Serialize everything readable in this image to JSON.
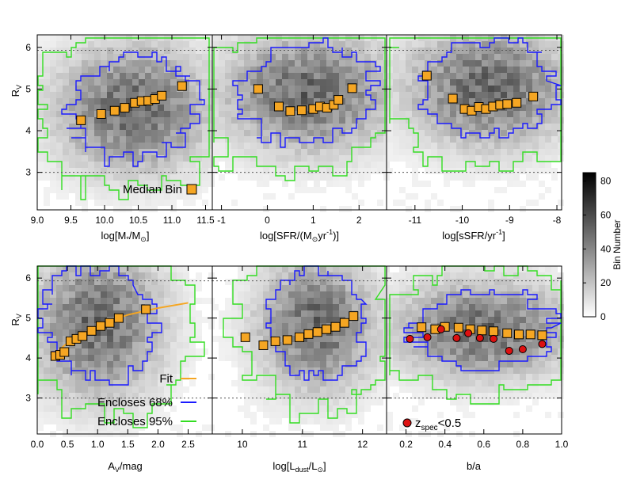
{
  "chart_data": [
    {
      "type": "scatter",
      "panel": "top-left",
      "xlabel": "log[M*/M⊙]",
      "ylabel": "RV",
      "xlim": [
        9.0,
        11.6
      ],
      "ylim": [
        2.1,
        6.3
      ],
      "xticks": [
        "9.0",
        "9.5",
        "10.0",
        "10.5",
        "11.0",
        "11.5"
      ],
      "yticks": [
        "3",
        "4",
        "5",
        "6"
      ],
      "series": [
        {
          "name": "Median Bin",
          "x": [
            9.65,
            9.95,
            10.15,
            10.3,
            10.45,
            10.55,
            10.65,
            10.75,
            10.85,
            11.15
          ],
          "y": [
            4.25,
            4.4,
            4.48,
            4.55,
            4.67,
            4.71,
            4.72,
            4.76,
            4.84,
            5.07
          ]
        }
      ]
    },
    {
      "type": "scatter",
      "panel": "top-middle",
      "xlabel": "log[SFR/(M⊙yr-1)]",
      "ylabel": "",
      "xlim": [
        -1.2,
        2.6
      ],
      "ylim": [
        2.1,
        6.3
      ],
      "xticks": [
        "-1",
        "0",
        "1",
        "2"
      ],
      "yticks": [],
      "series": [
        {
          "name": "Median Bin",
          "x": [
            -0.2,
            0.25,
            0.5,
            0.75,
            1.0,
            1.15,
            1.3,
            1.45,
            1.55,
            1.85
          ],
          "y": [
            5.0,
            4.58,
            4.47,
            4.49,
            4.52,
            4.58,
            4.55,
            4.62,
            4.74,
            5.02
          ]
        }
      ]
    },
    {
      "type": "scatter",
      "panel": "top-right",
      "xlabel": "log[sSFR/yr-1]",
      "ylabel": "",
      "xlim": [
        -11.6,
        -7.9
      ],
      "ylim": [
        2.1,
        6.3
      ],
      "xticks": [
        "-11",
        "-10",
        "-9",
        "-8"
      ],
      "yticks": [],
      "series": [
        {
          "name": "Median Bin",
          "x": [
            -10.75,
            -10.2,
            -9.95,
            -9.8,
            -9.65,
            -9.5,
            -9.35,
            -9.2,
            -9.05,
            -8.85,
            -8.5
          ],
          "y": [
            5.32,
            4.77,
            4.52,
            4.48,
            4.57,
            4.52,
            4.58,
            4.62,
            4.64,
            4.67,
            4.82
          ]
        }
      ]
    },
    {
      "type": "scatter",
      "panel": "bottom-left",
      "xlabel": "AV/mag",
      "ylabel": "RV",
      "xlim": [
        0.0,
        2.9
      ],
      "ylim": [
        2.1,
        6.3
      ],
      "xticks": [
        "0.0",
        "0.5",
        "1.0",
        "1.5",
        "2.0",
        "2.5"
      ],
      "yticks": [
        "3",
        "4",
        "5",
        "6"
      ],
      "series": [
        {
          "name": "Median Bin",
          "x": [
            0.3,
            0.38,
            0.45,
            0.55,
            0.65,
            0.75,
            0.9,
            1.05,
            1.2,
            1.35,
            1.8
          ],
          "y": [
            4.05,
            4.08,
            4.15,
            4.42,
            4.48,
            4.55,
            4.68,
            4.8,
            4.88,
            5.0,
            5.22
          ]
        },
        {
          "name": "Fit",
          "x": [
            0.25,
            0.5,
            0.8,
            1.1,
            1.5,
            2.0,
            2.5
          ],
          "y": [
            4.05,
            4.38,
            4.65,
            4.86,
            5.08,
            5.25,
            5.38
          ]
        }
      ]
    },
    {
      "type": "scatter",
      "panel": "bottom-middle",
      "xlabel": "log[Ldust/L⊙]",
      "ylabel": "",
      "xlim": [
        9.5,
        12.4
      ],
      "ylim": [
        2.1,
        6.3
      ],
      "xticks": [
        "10",
        "11",
        "12"
      ],
      "yticks": [],
      "series": [
        {
          "name": "Median Bin",
          "x": [
            10.05,
            10.35,
            10.55,
            10.75,
            10.95,
            11.1,
            11.25,
            11.4,
            11.55,
            11.7,
            11.85
          ],
          "y": [
            4.52,
            4.32,
            4.42,
            4.45,
            4.52,
            4.6,
            4.65,
            4.72,
            4.78,
            4.88,
            5.05
          ]
        }
      ]
    },
    {
      "type": "scatter",
      "panel": "bottom-right",
      "xlabel": "b/a",
      "ylabel": "",
      "xlim": [
        0.1,
        1.0
      ],
      "ylim": [
        2.1,
        6.3
      ],
      "xticks": [
        "0.2",
        "0.4",
        "0.6",
        "0.8",
        "1.0"
      ],
      "yticks": [],
      "series": [
        {
          "name": "Median Bin",
          "x": [
            0.28,
            0.35,
            0.4,
            0.47,
            0.53,
            0.59,
            0.65,
            0.72,
            0.78,
            0.84,
            0.9
          ],
          "y": [
            4.77,
            4.72,
            4.78,
            4.76,
            4.72,
            4.69,
            4.67,
            4.62,
            4.59,
            4.59,
            4.57
          ]
        },
        {
          "name": "zspec<0.5",
          "x": [
            0.22,
            0.31,
            0.38,
            0.46,
            0.52,
            0.58,
            0.65,
            0.73,
            0.8,
            0.9
          ],
          "y": [
            4.48,
            4.52,
            4.72,
            4.5,
            4.62,
            4.5,
            4.48,
            4.18,
            4.22,
            4.35
          ]
        }
      ]
    }
  ],
  "legend": {
    "median_bin": "Median Bin",
    "fit": "Fit",
    "encloses68": "Encloses 68%",
    "encloses95": "Encloses 95%",
    "zspec_main": "z",
    "zspec_sub": "spec",
    "zspec_rest": "<0.5"
  },
  "colorbar": {
    "label": "Bin Number",
    "min": 0,
    "max": 85,
    "ticks": [
      "0",
      "20",
      "40",
      "60",
      "80"
    ],
    "tick_values": [
      0,
      20,
      40,
      60,
      80
    ]
  },
  "colors": {
    "median_fill": "#f5a623",
    "fit_line": "#f5a623",
    "contour68": "#1a1aff",
    "contour95": "#33dd22",
    "zspec_fill": "#dd1111",
    "ref_line": "#555555"
  },
  "reference_lines": [
    3.0,
    5.93
  ],
  "axis_labels": {
    "rv_main": "R",
    "rv_sub": "V",
    "mstar": "log[M*/M⊙]",
    "sfr": "log[SFR/(M⊙yr-1)]",
    "ssfr": "log[sSFR/yr-1]",
    "av": "AV/mag",
    "ldust": "log[Ldust/L⊙]",
    "ba": "b/a"
  }
}
